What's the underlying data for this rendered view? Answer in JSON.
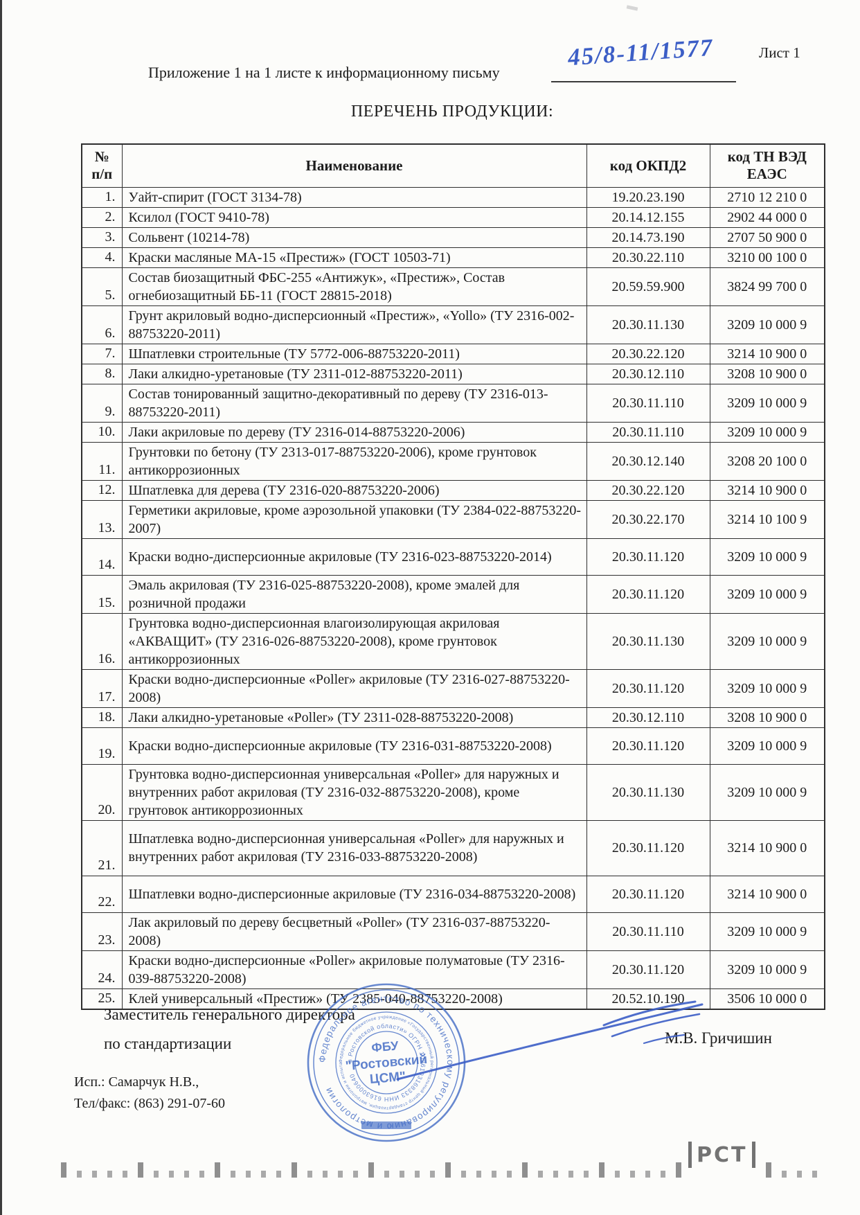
{
  "page": {
    "sheet_label": "Лист 1",
    "appendix_line": "Приложение 1 на 1 листе к информационному письму",
    "handwritten_number": "45/8-11/1577",
    "title": "ПЕРЕЧЕНЬ ПРОДУКЦИИ:"
  },
  "table": {
    "headers": {
      "num_top": "№",
      "num_bottom": "п/п",
      "name": "Наименование",
      "okpd2": "код ОКПД2",
      "tnved_top": "код ТН ВЭД",
      "tnved_bottom": "ЕАЭС"
    },
    "rows": [
      {
        "num": "1.",
        "name": "Уайт-спирит (ГОСТ 3134-78)",
        "okpd2": "19.20.23.190",
        "tnved": "2710 12 210 0",
        "lines": 1
      },
      {
        "num": "2.",
        "name": "Ксилол (ГОСТ 9410-78)",
        "okpd2": "20.14.12.155",
        "tnved": "2902 44 000 0",
        "lines": 1
      },
      {
        "num": "3.",
        "name": "Сольвент (10214-78)",
        "okpd2": "20.14.73.190",
        "tnved": "2707 50 900 0",
        "lines": 1
      },
      {
        "num": "4.",
        "name": "Краски масляные МА-15 «Престиж» (ГОСТ 10503-71)",
        "okpd2": "20.30.22.110",
        "tnved": "3210 00 100 0",
        "lines": 1
      },
      {
        "num": "5.",
        "name": "Состав биозащитный ФБС-255 «Антижук», «Престиж», Состав огнебиозащитный ББ-11 (ГОСТ 28815-2018)",
        "okpd2": "20.59.59.900",
        "tnved": "3824 99 700 0",
        "lines": 2
      },
      {
        "num": "6.",
        "name": "Грунт акриловый водно-дисперсионный «Престиж», «Yollo» (ТУ 2316-002-88753220-2011)",
        "okpd2": "20.30.11.130",
        "tnved": "3209 10 000 9",
        "lines": 2
      },
      {
        "num": "7.",
        "name": "Шпатлевки строительные (ТУ 5772-006-88753220-2011)",
        "okpd2": "20.30.22.120",
        "tnved": "3214 10 900 0",
        "lines": 1
      },
      {
        "num": "8.",
        "name": "Лаки алкидно-уретановые (ТУ 2311-012-88753220-2011)",
        "okpd2": "20.30.12.110",
        "tnved": "3208 10 900 0",
        "lines": 1
      },
      {
        "num": "9.",
        "name": "Состав тонированный защитно-декоративный по дереву (ТУ 2316-013-88753220-2011)",
        "okpd2": "20.30.11.110",
        "tnved": "3209 10 000 9",
        "lines": 2
      },
      {
        "num": "10.",
        "name": "Лаки акриловые по дереву (ТУ 2316-014-88753220-2006)",
        "okpd2": "20.30.11.110",
        "tnved": "3209 10 000 9",
        "lines": 1
      },
      {
        "num": "11.",
        "name": "Грунтовки по бетону (ТУ 2313-017-88753220-2006), кроме грунтовок антикоррозионных",
        "okpd2": "20.30.12.140",
        "tnved": "3208 20 100 0",
        "lines": 2
      },
      {
        "num": "12.",
        "name": "Шпатлевка для дерева (ТУ 2316-020-88753220-2006)",
        "okpd2": "20.30.22.120",
        "tnved": "3214 10 900 0",
        "lines": 1
      },
      {
        "num": "13.",
        "name": "Герметики акриловые, кроме аэрозольной упаковки (ТУ 2384-022-88753220-2007)",
        "okpd2": "20.30.22.170",
        "tnved": "3214 10 100 9",
        "lines": 2
      },
      {
        "num": "14.",
        "name": "Краски водно-дисперсионные акриловые (ТУ 2316-023-88753220-2014)",
        "okpd2": "20.30.11.120",
        "tnved": "3209 10 000 9",
        "lines": 2
      },
      {
        "num": "15.",
        "name": "Эмаль акриловая (ТУ 2316-025-88753220-2008), кроме эмалей для розничной продажи",
        "okpd2": "20.30.11.120",
        "tnved": "3209 10 000 9",
        "lines": 2
      },
      {
        "num": "16.",
        "name": "Грунтовка водно-дисперсионная влагоизолирующая акриловая «АКВАЩИТ» (ТУ 2316-026-88753220-2008), кроме грунтовок антикоррозионных",
        "okpd2": "20.30.11.130",
        "tnved": "3209 10 000 9",
        "lines": 3
      },
      {
        "num": "17.",
        "name": "Краски водно-дисперсионные «Poller» акриловые (ТУ 2316-027-88753220-2008)",
        "okpd2": "20.30.11.120",
        "tnved": "3209 10 000 9",
        "lines": 2
      },
      {
        "num": "18.",
        "name": "Лаки алкидно-уретановые «Poller» (ТУ 2311-028-88753220-2008)",
        "okpd2": "20.30.12.110",
        "tnved": "3208 10 900 0",
        "lines": 1
      },
      {
        "num": "19.",
        "name": "Краски водно-дисперсионные акриловые (ТУ 2316-031-88753220-2008)",
        "okpd2": "20.30.11.120",
        "tnved": "3209 10 000 9",
        "lines": 2
      },
      {
        "num": "20.",
        "name": "Грунтовка водно-дисперсионная универсальная «Poller» для наружных и внутренних работ акриловая (ТУ 2316-032-88753220-2008), кроме грунтовок антикоррозионных",
        "okpd2": "20.30.11.130",
        "tnved": "3209 10 000 9",
        "lines": 3
      },
      {
        "num": "21.",
        "name": "Шпатлевка водно-дисперсионная универсальная «Poller» для наружных и внутренних работ акриловая (ТУ 2316-033-88753220-2008)",
        "okpd2": "20.30.11.120",
        "tnved": "3214 10 900 0",
        "lines": 3
      },
      {
        "num": "22.",
        "name": "Шпатлевки водно-дисперсионные акриловые (ТУ 2316-034-88753220-2008)",
        "okpd2": "20.30.11.120",
        "tnved": "3214 10 900 0",
        "lines": 2
      },
      {
        "num": "23.",
        "name": "Лак акриловый по дереву бесцветный «Poller» (ТУ 2316-037-88753220-2008)",
        "okpd2": "20.30.11.110",
        "tnved": "3209 10 000 9",
        "lines": 2
      },
      {
        "num": "24.",
        "name": "Краски водно-дисперсионные «Poller» акриловые полуматовые (ТУ 2316-039-88753220-2008)",
        "okpd2": "20.30.11.120",
        "tnved": "3209 10 000 9",
        "lines": 2
      },
      {
        "num": "25.",
        "name": "Клей универсальный «Престиж» (ТУ 2385-040-88753220-2008)",
        "okpd2": "20.52.10.190",
        "tnved": "3506 10 000 0",
        "lines": 1
      }
    ]
  },
  "signature": {
    "role_line1": "Заместитель генерального директора",
    "role_line2": "по стандартизации",
    "name": "М.В. Гричишин"
  },
  "footer": {
    "executor_line1": "Исп.: Самарчук Н.В.,",
    "executor_line2": "Тел/факс: (863) 291-07-60",
    "rst_label": "РСТ"
  },
  "stamp": {
    "ring_outer": "Федеральное агентство по техническому регулированию и метрологии",
    "ring_middle": "Федеральное бюджетное учреждение «Государственный региональный центр стандартизации, метрологии и испытаний",
    "ring_inner": "в Ростовской области» ОГРН 1026103168333 ИНН 6163000640",
    "center_line1": "ФБУ",
    "center_line2": "\"Ростовский",
    "center_line3": "ЦСМ\"",
    "color": "#3e68c4"
  },
  "colors": {
    "ink_blue": "#3c5ec6",
    "stamp_blue": "#3e68c4",
    "text": "#1c1c1c",
    "tick_gray": "#9d9d9d"
  }
}
